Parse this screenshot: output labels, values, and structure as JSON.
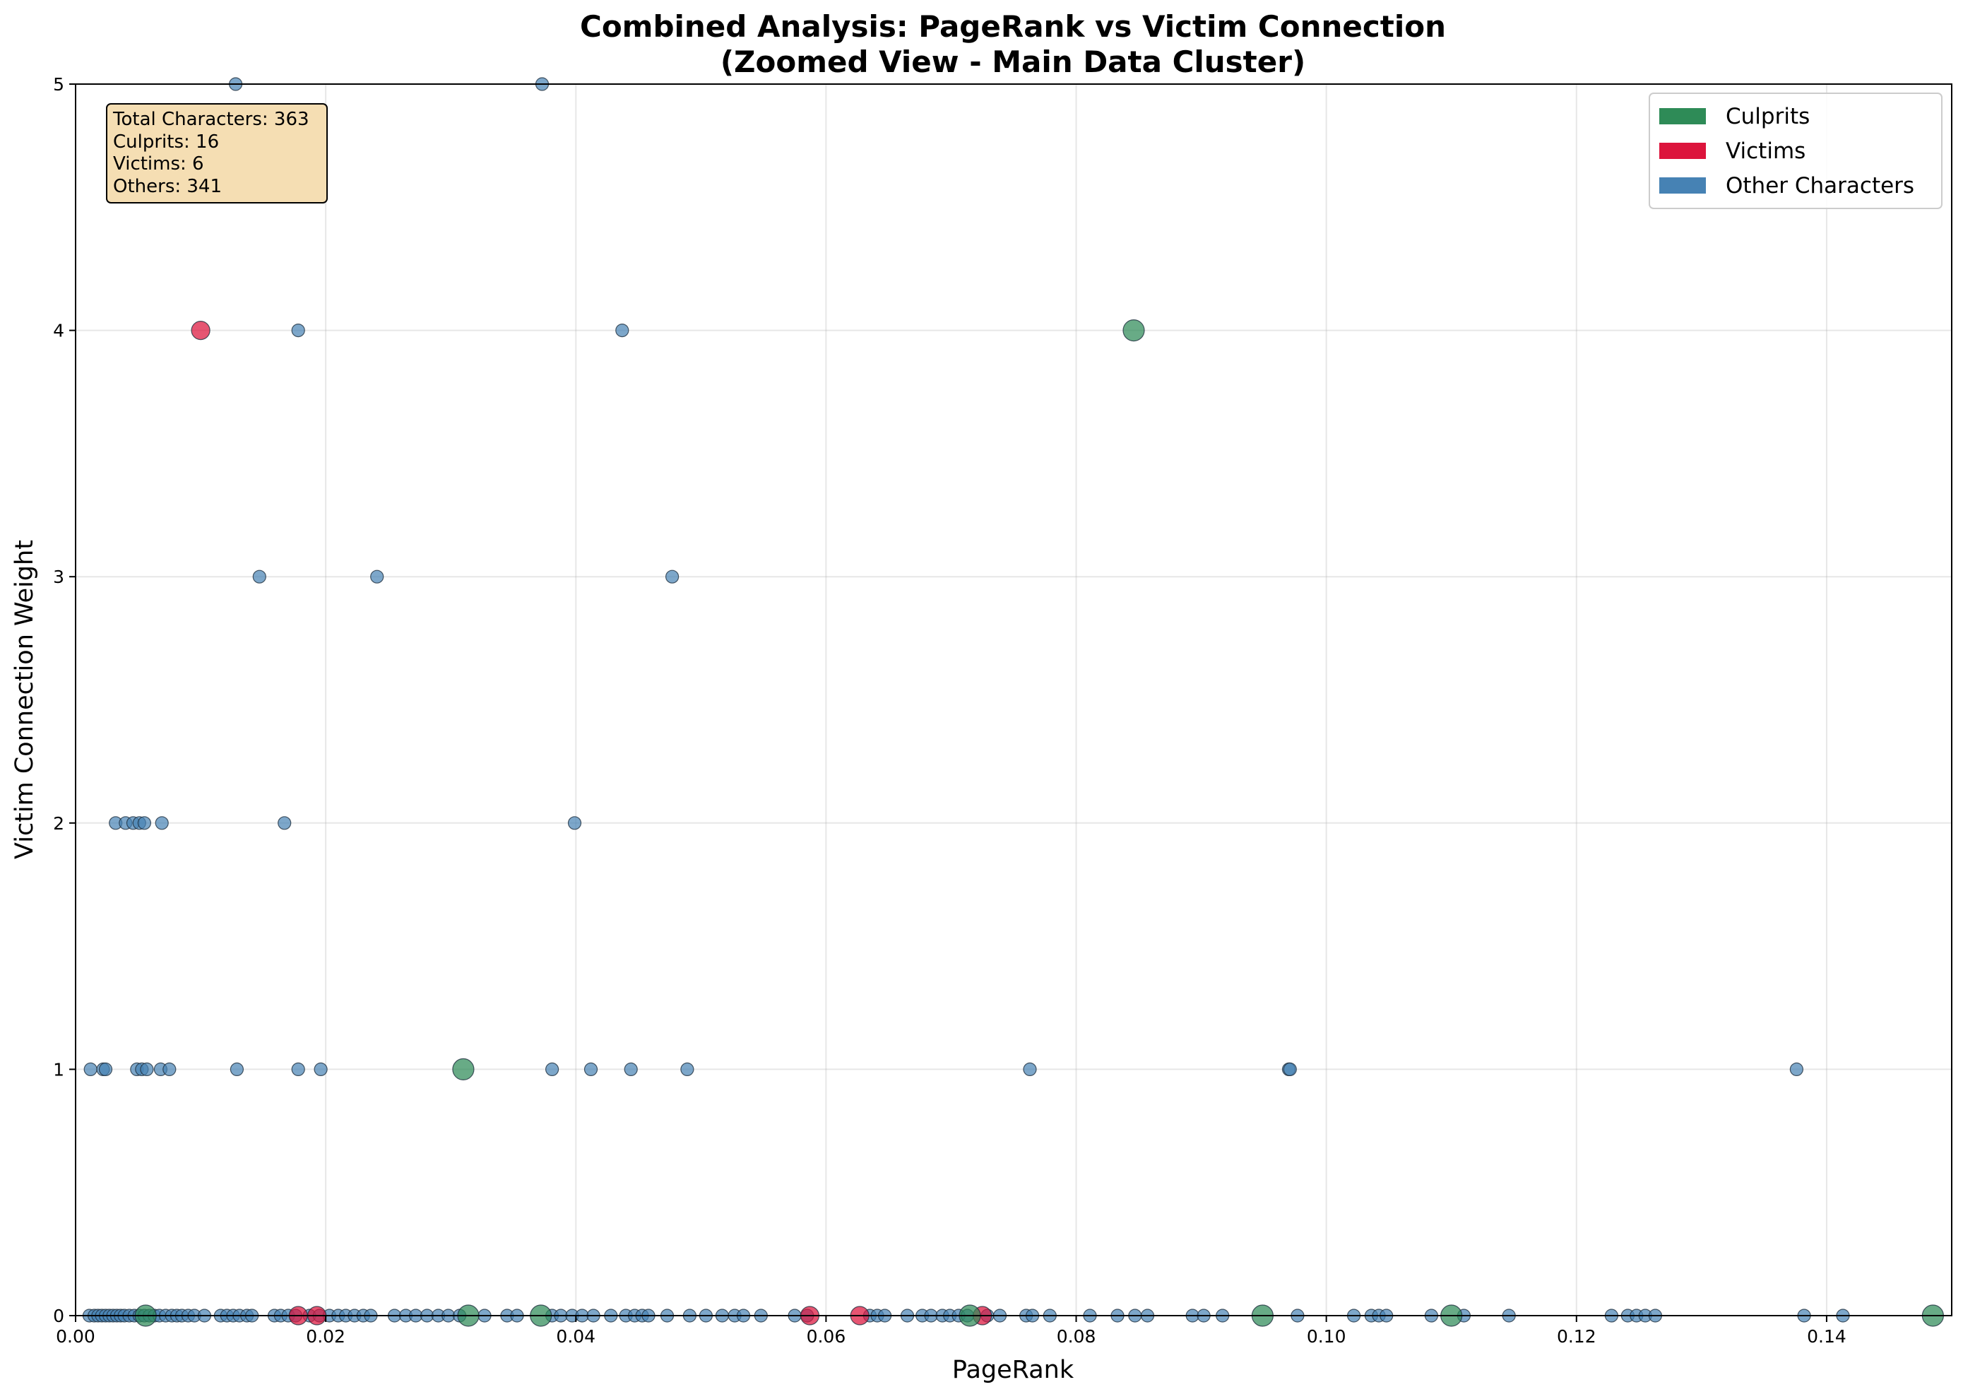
{
  "chart_data": {
    "type": "scatter",
    "title": [
      "Combined Analysis: PageRank vs Victim Connection",
      "(Zoomed View - Main Data Cluster)"
    ],
    "xlabel": "PageRank",
    "ylabel": "Victim Connection Weight",
    "xlim": [
      0,
      0.15
    ],
    "ylim": [
      0,
      5
    ],
    "x_ticks": [
      "0.00",
      "0.02",
      "0.04",
      "0.06",
      "0.08",
      "0.10",
      "0.12",
      "0.14"
    ],
    "y_ticks": [
      "0",
      "1",
      "2",
      "3",
      "4",
      "5"
    ],
    "grid": true,
    "legend_position": "top-right",
    "legend": [
      {
        "label": "Culprits",
        "color": "#2e8b57"
      },
      {
        "label": "Victims",
        "color": "#dc143c"
      },
      {
        "label": "Other Characters",
        "color": "#4682b4"
      }
    ],
    "info_box": [
      "Total Characters: 363",
      "Culprits: 16",
      "Victims: 6",
      "Others: 341"
    ],
    "info_box_position": "top-left",
    "series": [
      {
        "name": "Other Characters",
        "color": "#4682b4",
        "points": [
          [
            0.0128,
            5
          ],
          [
            0.0373,
            5
          ],
          [
            0.0178,
            4
          ],
          [
            0.0437,
            4
          ],
          [
            0.0147,
            3
          ],
          [
            0.0241,
            3
          ],
          [
            0.0477,
            3
          ],
          [
            0.0032,
            2
          ],
          [
            0.004,
            2
          ],
          [
            0.0046,
            2
          ],
          [
            0.0051,
            2
          ],
          [
            0.0055,
            2
          ],
          [
            0.0069,
            2
          ],
          [
            0.0167,
            2
          ],
          [
            0.0399,
            2
          ],
          [
            0.0012,
            1
          ],
          [
            0.0022,
            1
          ],
          [
            0.0024,
            1
          ],
          [
            0.0049,
            1
          ],
          [
            0.0053,
            1
          ],
          [
            0.0057,
            1
          ],
          [
            0.0068,
            1
          ],
          [
            0.0075,
            1
          ],
          [
            0.0129,
            1
          ],
          [
            0.0178,
            1
          ],
          [
            0.0196,
            1
          ],
          [
            0.0381,
            1
          ],
          [
            0.0412,
            1
          ],
          [
            0.0444,
            1
          ],
          [
            0.0489,
            1
          ],
          [
            0.0763,
            1
          ],
          [
            0.097,
            1
          ],
          [
            0.0971,
            1
          ],
          [
            0.1376,
            1
          ],
          [
            0.0011,
            0
          ],
          [
            0.0015,
            0
          ],
          [
            0.0018,
            0
          ],
          [
            0.0021,
            0
          ],
          [
            0.0024,
            0
          ],
          [
            0.0027,
            0
          ],
          [
            0.003,
            0
          ],
          [
            0.0033,
            0
          ],
          [
            0.0036,
            0
          ],
          [
            0.0039,
            0
          ],
          [
            0.0043,
            0
          ],
          [
            0.0047,
            0
          ],
          [
            0.0051,
            0
          ],
          [
            0.0055,
            0
          ],
          [
            0.0059,
            0
          ],
          [
            0.0063,
            0
          ],
          [
            0.0067,
            0
          ],
          [
            0.0072,
            0
          ],
          [
            0.0077,
            0
          ],
          [
            0.0081,
            0
          ],
          [
            0.0085,
            0
          ],
          [
            0.009,
            0
          ],
          [
            0.0095,
            0
          ],
          [
            0.0103,
            0
          ],
          [
            0.0116,
            0
          ],
          [
            0.0121,
            0
          ],
          [
            0.0126,
            0
          ],
          [
            0.0131,
            0
          ],
          [
            0.0137,
            0
          ],
          [
            0.0141,
            0
          ],
          [
            0.0159,
            0
          ],
          [
            0.0164,
            0
          ],
          [
            0.017,
            0
          ],
          [
            0.0176,
            0
          ],
          [
            0.0187,
            0
          ],
          [
            0.0195,
            0
          ],
          [
            0.0203,
            0
          ],
          [
            0.021,
            0
          ],
          [
            0.0216,
            0
          ],
          [
            0.0223,
            0
          ],
          [
            0.023,
            0
          ],
          [
            0.0236,
            0
          ],
          [
            0.0255,
            0
          ],
          [
            0.0264,
            0
          ],
          [
            0.0272,
            0
          ],
          [
            0.0281,
            0
          ],
          [
            0.029,
            0
          ],
          [
            0.0298,
            0
          ],
          [
            0.0307,
            0
          ],
          [
            0.0327,
            0
          ],
          [
            0.0345,
            0
          ],
          [
            0.0353,
            0
          ],
          [
            0.0381,
            0
          ],
          [
            0.0388,
            0
          ],
          [
            0.0397,
            0
          ],
          [
            0.0405,
            0
          ],
          [
            0.0414,
            0
          ],
          [
            0.0428,
            0
          ],
          [
            0.044,
            0
          ],
          [
            0.0447,
            0
          ],
          [
            0.0453,
            0
          ],
          [
            0.0458,
            0
          ],
          [
            0.0473,
            0
          ],
          [
            0.0491,
            0
          ],
          [
            0.0504,
            0
          ],
          [
            0.0517,
            0
          ],
          [
            0.0527,
            0
          ],
          [
            0.0534,
            0
          ],
          [
            0.0548,
            0
          ],
          [
            0.0575,
            0
          ],
          [
            0.0585,
            0
          ],
          [
            0.0635,
            0
          ],
          [
            0.0641,
            0
          ],
          [
            0.0647,
            0
          ],
          [
            0.0665,
            0
          ],
          [
            0.0677,
            0
          ],
          [
            0.0684,
            0
          ],
          [
            0.0693,
            0
          ],
          [
            0.0699,
            0
          ],
          [
            0.0706,
            0
          ],
          [
            0.0713,
            0
          ],
          [
            0.0729,
            0
          ],
          [
            0.0739,
            0
          ],
          [
            0.076,
            0
          ],
          [
            0.0765,
            0
          ],
          [
            0.0779,
            0
          ],
          [
            0.0811,
            0
          ],
          [
            0.0833,
            0
          ],
          [
            0.0847,
            0
          ],
          [
            0.0857,
            0
          ],
          [
            0.0893,
            0
          ],
          [
            0.0902,
            0
          ],
          [
            0.0917,
            0
          ],
          [
            0.0977,
            0
          ],
          [
            0.1022,
            0
          ],
          [
            0.1036,
            0
          ],
          [
            0.1042,
            0
          ],
          [
            0.1048,
            0
          ],
          [
            0.1084,
            0
          ],
          [
            0.111,
            0
          ],
          [
            0.1146,
            0
          ],
          [
            0.1228,
            0
          ],
          [
            0.1241,
            0
          ],
          [
            0.1248,
            0
          ],
          [
            0.1255,
            0
          ],
          [
            0.1263,
            0
          ],
          [
            0.1382,
            0
          ],
          [
            0.1413,
            0
          ]
        ]
      },
      {
        "name": "Victims",
        "color": "#dc143c",
        "points": [
          [
            0.01,
            4
          ],
          [
            0.0178,
            0
          ],
          [
            0.0193,
            0
          ],
          [
            0.0587,
            0
          ],
          [
            0.0627,
            0
          ],
          [
            0.0725,
            0
          ]
        ]
      },
      {
        "name": "Culprits",
        "color": "#2e8b57",
        "points": [
          [
            0.0846,
            4
          ],
          [
            0.031,
            1
          ],
          [
            0.0056,
            0
          ],
          [
            0.0314,
            0
          ],
          [
            0.0372,
            0
          ],
          [
            0.0715,
            0
          ],
          [
            0.0949,
            0
          ],
          [
            0.11,
            0
          ],
          [
            0.1485,
            0
          ]
        ]
      }
    ]
  }
}
